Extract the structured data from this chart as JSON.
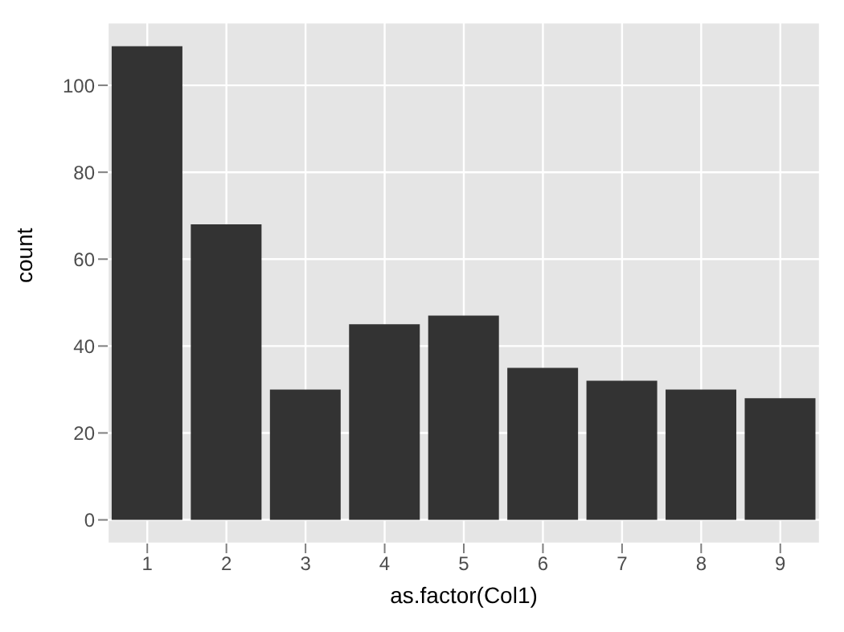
{
  "chart_data": {
    "type": "bar",
    "xlabel": "as.factor(Col1)",
    "ylabel": "count",
    "categories": [
      "1",
      "2",
      "3",
      "4",
      "5",
      "6",
      "7",
      "8",
      "9"
    ],
    "values": [
      109,
      68,
      30,
      45,
      47,
      35,
      32,
      30,
      28
    ],
    "color": "#333333",
    "ylim": [
      -5.45,
      114.45
    ],
    "yticks": [
      0,
      20,
      40,
      60,
      80,
      100
    ],
    "grid": true
  }
}
